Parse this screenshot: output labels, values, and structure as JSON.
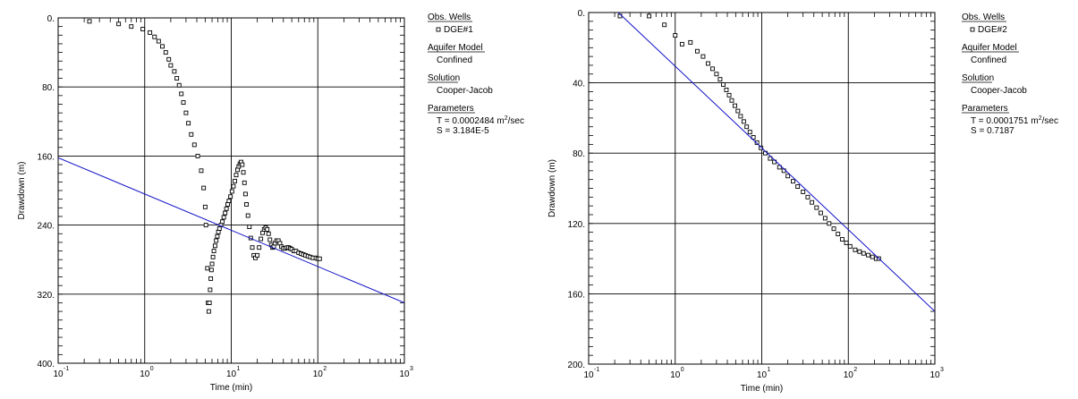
{
  "chart_data": [
    {
      "type": "scatter",
      "title": "",
      "xlabel": "Time (min)",
      "ylabel": "Drawdown (m)",
      "x_scale": "log",
      "xlim": [
        0.1,
        1000
      ],
      "ylim": [
        0,
        400
      ],
      "y_inverted": true,
      "x_tick_labels": [
        [
          "10",
          "-1"
        ],
        [
          "10",
          "0"
        ],
        [
          "10",
          "1"
        ],
        [
          "10",
          "2"
        ],
        [
          "10",
          "3"
        ]
      ],
      "y_tick_labels": [
        "0.",
        "80.",
        "160.",
        "240.",
        "320.",
        "400."
      ],
      "y_ticks": [
        0,
        80,
        160,
        240,
        320,
        400
      ],
      "grid": true,
      "series": [
        {
          "name": "DGE#1",
          "kind": "observed",
          "marker": "open-square",
          "color": "#000000",
          "points": [
            [
              0.23,
              4
            ],
            [
              0.5,
              7
            ],
            [
              0.7,
              10
            ],
            [
              0.95,
              13
            ],
            [
              1.15,
              17
            ],
            [
              1.3,
              22
            ],
            [
              1.45,
              27
            ],
            [
              1.6,
              33
            ],
            [
              1.75,
              40
            ],
            [
              1.9,
              48
            ],
            [
              2.0,
              55
            ],
            [
              2.2,
              62
            ],
            [
              2.35,
              70
            ],
            [
              2.5,
              78
            ],
            [
              2.65,
              88
            ],
            [
              2.8,
              98
            ],
            [
              3.0,
              110
            ],
            [
              3.2,
              122
            ],
            [
              3.45,
              135
            ],
            [
              3.75,
              147
            ],
            [
              4.1,
              160
            ],
            [
              4.5,
              177
            ],
            [
              4.8,
              197
            ],
            [
              5.0,
              219
            ],
            [
              5.1,
              240
            ],
            [
              5.3,
              290
            ],
            [
              5.4,
              330
            ],
            [
              5.5,
              340
            ],
            [
              5.6,
              330
            ],
            [
              5.7,
              315
            ],
            [
              5.8,
              302
            ],
            [
              5.9,
              292
            ],
            [
              6.0,
              285
            ],
            [
              6.15,
              277
            ],
            [
              6.3,
              270
            ],
            [
              6.5,
              264
            ],
            [
              6.7,
              258
            ],
            [
              6.9,
              253
            ],
            [
              7.1,
              248
            ],
            [
              7.3,
              244
            ],
            [
              7.6,
              240
            ],
            [
              7.9,
              236
            ],
            [
              8.2,
              231
            ],
            [
              8.5,
              226
            ],
            [
              8.8,
              221
            ],
            [
              9.1,
              216
            ],
            [
              9.4,
              212
            ],
            [
              9.8,
              207
            ],
            [
              10.2,
              201
            ],
            [
              10.6,
              195
            ],
            [
              11.0,
              189
            ],
            [
              11.4,
              182
            ],
            [
              11.8,
              176
            ],
            [
              12.2,
              172
            ],
            [
              12.6,
              169
            ],
            [
              13.0,
              167
            ],
            [
              13.4,
              170
            ],
            [
              13.8,
              179
            ],
            [
              14.2,
              191
            ],
            [
              14.6,
              204
            ],
            [
              15.0,
              216
            ],
            [
              15.6,
              229
            ],
            [
              16.2,
              242
            ],
            [
              16.8,
              255
            ],
            [
              17.5,
              266
            ],
            [
              18.2,
              275
            ],
            [
              19.0,
              278
            ],
            [
              20.0,
              275
            ],
            [
              21.0,
              266
            ],
            [
              22.0,
              256
            ],
            [
              23.0,
              249
            ],
            [
              24.0,
              245
            ],
            [
              25.0,
              243
            ],
            [
              26.0,
              245
            ],
            [
              27.0,
              250
            ],
            [
              28.0,
              257
            ],
            [
              29.0,
              263
            ],
            [
              30.0,
              266
            ],
            [
              31.0,
              265
            ],
            [
              32.0,
              261
            ],
            [
              33.5,
              258
            ],
            [
              35.0,
              258
            ],
            [
              36.5,
              261
            ],
            [
              38.0,
              265
            ],
            [
              40.0,
              267
            ],
            [
              42.0,
              267
            ],
            [
              44.0,
              266
            ],
            [
              46.0,
              266
            ],
            [
              48.0,
              267
            ],
            [
              50.0,
              268
            ],
            [
              53.0,
              270
            ],
            [
              56.0,
              270
            ],
            [
              60.0,
              272
            ],
            [
              64.0,
              273
            ],
            [
              68.0,
              274
            ],
            [
              72.0,
              275
            ],
            [
              77.0,
              276
            ],
            [
              82.0,
              277
            ],
            [
              88.0,
              278
            ],
            [
              95.0,
              278
            ],
            [
              100.0,
              279
            ],
            [
              105.0,
              279
            ]
          ]
        },
        {
          "name": "Cooper-Jacob",
          "kind": "fit",
          "color": "#1010c8",
          "points": [
            [
              0.1,
              162
            ],
            [
              1000,
              330
            ]
          ]
        }
      ],
      "legend": {
        "title": "Obs. Wells",
        "well": "DGE#1",
        "aquifer_title": "Aquifer Model",
        "aquifer": "Confined",
        "solution_title": "Solution",
        "solution": "Cooper-Jacob",
        "params_title": "Parameters",
        "T_prefix": "T = 0.0002484 m",
        "T_exp": "2",
        "T_suffix": "/sec",
        "S": "S = 3.184E-5"
      }
    },
    {
      "type": "scatter",
      "title": "",
      "xlabel": "Time (min)",
      "ylabel": "Drawdown (m)",
      "x_scale": "log",
      "xlim": [
        0.1,
        1000
      ],
      "ylim": [
        0,
        200
      ],
      "y_inverted": true,
      "x_tick_labels": [
        [
          "10",
          "-1"
        ],
        [
          "10",
          "0"
        ],
        [
          "10",
          "1"
        ],
        [
          "10",
          "2"
        ],
        [
          "10",
          "3"
        ]
      ],
      "y_tick_labels": [
        "0.",
        "40.",
        "80.",
        "120.",
        "160.",
        "200."
      ],
      "y_ticks": [
        0,
        40,
        80,
        120,
        160,
        200
      ],
      "grid": true,
      "series": [
        {
          "name": "DGE#2",
          "kind": "observed",
          "marker": "open-square",
          "color": "#000000",
          "points": [
            [
              0.23,
              2
            ],
            [
              0.5,
              2
            ],
            [
              0.75,
              7
            ],
            [
              1.0,
              13
            ],
            [
              1.2,
              18
            ],
            [
              1.5,
              17
            ],
            [
              1.8,
              22
            ],
            [
              2.1,
              25
            ],
            [
              2.4,
              29
            ],
            [
              2.7,
              32
            ],
            [
              3.0,
              35
            ],
            [
              3.3,
              38
            ],
            [
              3.6,
              41
            ],
            [
              3.9,
              44
            ],
            [
              4.2,
              47
            ],
            [
              4.5,
              50
            ],
            [
              4.9,
              53
            ],
            [
              5.3,
              56
            ],
            [
              5.7,
              59
            ],
            [
              6.2,
              62
            ],
            [
              6.7,
              65
            ],
            [
              7.3,
              68
            ],
            [
              8.0,
              71
            ],
            [
              8.8,
              74
            ],
            [
              9.8,
              77
            ],
            [
              11,
              80
            ],
            [
              12.5,
              83
            ],
            [
              14,
              85
            ],
            [
              16,
              88
            ],
            [
              18,
              90
            ],
            [
              20,
              93
            ],
            [
              23,
              96
            ],
            [
              26,
              99
            ],
            [
              30,
              102
            ],
            [
              34,
              105
            ],
            [
              38,
              108
            ],
            [
              43,
              111
            ],
            [
              48,
              114
            ],
            [
              54,
              117
            ],
            [
              60,
              120
            ],
            [
              68,
              123
            ],
            [
              76,
              126
            ],
            [
              85,
              129
            ],
            [
              95,
              131
            ],
            [
              105,
              133
            ],
            [
              120,
              135
            ],
            [
              135,
              136
            ],
            [
              150,
              137
            ],
            [
              170,
              138
            ],
            [
              190,
              139
            ],
            [
              210,
              140
            ],
            [
              225,
              140
            ]
          ]
        },
        {
          "name": "Cooper-Jacob",
          "kind": "fit",
          "color": "#1010c8",
          "points": [
            [
              0.22,
              0
            ],
            [
              1000,
              170
            ]
          ]
        }
      ],
      "legend": {
        "title": "Obs. Wells",
        "well": "DGE#2",
        "aquifer_title": "Aquifer Model",
        "aquifer": "Confined",
        "solution_title": "Solution",
        "solution": "Cooper-Jacob",
        "params_title": "Parameters",
        "T_prefix": "T = 0.0001751 m",
        "T_exp": "2",
        "T_suffix": "/sec",
        "S": "S = 0.7187"
      }
    }
  ]
}
